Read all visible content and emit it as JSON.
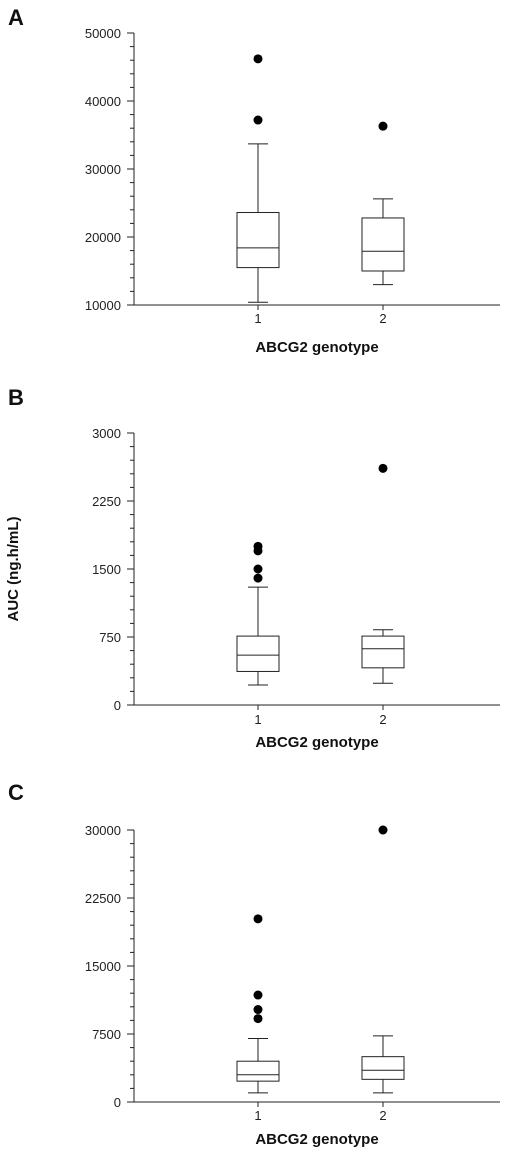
{
  "chart_data": [
    {
      "type": "box",
      "panel_label": "A",
      "xlabel": "ABCG2 genotype",
      "ylabel": "",
      "categories": [
        "1",
        "2"
      ],
      "ylim": [
        10000,
        50000
      ],
      "yticks": [
        "10000",
        "20000",
        "30000",
        "40000",
        "50000"
      ],
      "boxes": [
        {
          "category": "1",
          "whisker_low": 10400,
          "q1": 15500,
          "median": 18400,
          "q3": 23600,
          "whisker_high": 33700,
          "outliers": [
            37200,
            46200
          ]
        },
        {
          "category": "2",
          "whisker_low": 13000,
          "q1": 15000,
          "median": 17900,
          "q3": 22800,
          "whisker_high": 25600,
          "outliers": [
            36300
          ]
        }
      ]
    },
    {
      "type": "box",
      "panel_label": "B",
      "xlabel": "ABCG2 genotype",
      "ylabel": "AUC (ng.h/mL)",
      "categories": [
        "1",
        "2"
      ],
      "ylim": [
        0,
        3000
      ],
      "yticks": [
        "0",
        "750",
        "1500",
        "2250",
        "3000"
      ],
      "boxes": [
        {
          "category": "1",
          "whisker_low": 220,
          "q1": 370,
          "median": 550,
          "q3": 760,
          "whisker_high": 1300,
          "outliers": [
            1400,
            1500,
            1700,
            1750
          ]
        },
        {
          "category": "2",
          "whisker_low": 240,
          "q1": 410,
          "median": 620,
          "q3": 760,
          "whisker_high": 830,
          "outliers": [
            2610
          ]
        }
      ]
    },
    {
      "type": "box",
      "panel_label": "C",
      "xlabel": "ABCG2 genotype",
      "ylabel": "",
      "categories": [
        "1",
        "2"
      ],
      "ylim": [
        0,
        30000
      ],
      "yticks": [
        "0",
        "7500",
        "15000",
        "22500",
        "30000"
      ],
      "boxes": [
        {
          "category": "1",
          "whisker_low": 1000,
          "q1": 2300,
          "median": 3000,
          "q3": 4500,
          "whisker_high": 7000,
          "outliers": [
            9200,
            10200,
            11800,
            20200
          ]
        },
        {
          "category": "2",
          "whisker_low": 1000,
          "q1": 2500,
          "median": 3500,
          "q3": 5000,
          "whisker_high": 7300,
          "outliers": [
            30000
          ]
        }
      ]
    }
  ]
}
